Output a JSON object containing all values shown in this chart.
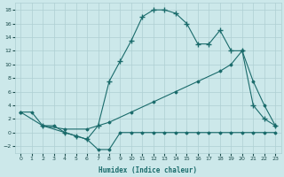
{
  "xlabel": "Humidex (Indice chaleur)",
  "bg_color": "#cce8ea",
  "grid_color": "#aecfd2",
  "line_color": "#1a6b6b",
  "xlim": [
    -0.5,
    23.5
  ],
  "ylim": [
    -3,
    19
  ],
  "xticks": [
    0,
    1,
    2,
    3,
    4,
    5,
    6,
    7,
    8,
    9,
    10,
    11,
    12,
    13,
    14,
    15,
    16,
    17,
    18,
    19,
    20,
    21,
    22,
    23
  ],
  "yticks": [
    -2,
    0,
    2,
    4,
    6,
    8,
    10,
    12,
    14,
    16,
    18
  ],
  "line1_x": [
    0,
    1,
    2,
    3,
    4,
    5,
    6,
    7,
    8,
    9,
    10,
    11,
    12,
    13,
    14,
    15,
    16,
    17,
    18,
    19,
    20,
    21,
    22,
    23
  ],
  "line1_y": [
    3.0,
    3.0,
    1.0,
    1.0,
    0.0,
    -0.5,
    -1.0,
    -2.5,
    -2.5,
    0.0,
    0.0,
    0.0,
    0.0,
    0.0,
    0.0,
    0.0,
    0.0,
    0.0,
    0.0,
    0.0,
    0.0,
    0.0,
    0.0,
    0.0
  ],
  "line2_x": [
    0,
    2,
    4,
    6,
    8,
    10,
    12,
    14,
    16,
    18,
    19,
    20,
    21,
    22,
    23
  ],
  "line2_y": [
    3.0,
    1.0,
    0.5,
    0.5,
    1.5,
    3.0,
    4.5,
    6.0,
    7.5,
    9.0,
    10.0,
    12.0,
    7.5,
    4.0,
    1.0
  ],
  "line3_x": [
    2,
    4,
    5,
    6,
    7,
    8,
    9,
    10,
    11,
    12,
    13,
    14,
    15,
    16,
    17,
    18,
    19,
    20,
    21,
    22,
    23
  ],
  "line3_y": [
    1.0,
    0.0,
    -0.5,
    -1.0,
    1.0,
    7.5,
    10.5,
    13.5,
    17.0,
    18.0,
    18.0,
    17.5,
    16.0,
    13.0,
    13.0,
    15.0,
    12.0,
    12.0,
    4.0,
    2.0,
    1.0
  ],
  "marker3": "+",
  "marker1": "D",
  "marker2": "D"
}
